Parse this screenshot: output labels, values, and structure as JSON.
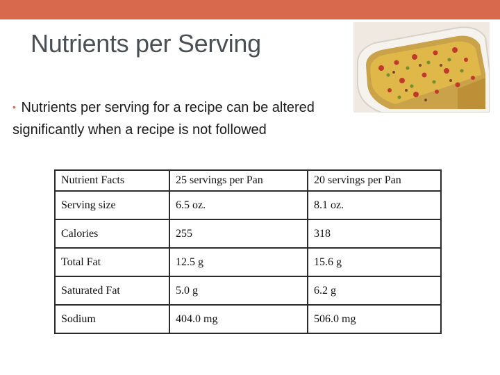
{
  "slide": {
    "title": "Nutrients per Serving",
    "bullet_text": "Nutrients per serving for a recipe can be altered significantly when a recipe is not followed",
    "accent_color": "#d9694c",
    "photo_icon": "casserole-photo"
  },
  "table": {
    "headers": [
      "Nutrient Facts",
      "25 servings per Pan",
      "20 servings per Pan"
    ],
    "rows": [
      [
        "Serving size",
        "6.5 oz.",
        "8.1 oz."
      ],
      [
        "Calories",
        "255",
        "318"
      ],
      [
        "Total Fat",
        "12.5 g",
        "15.6 g"
      ],
      [
        "Saturated Fat",
        "5.0 g",
        "6.2 g"
      ],
      [
        "Sodium",
        "404.0 mg",
        "506.0 mg"
      ]
    ]
  }
}
